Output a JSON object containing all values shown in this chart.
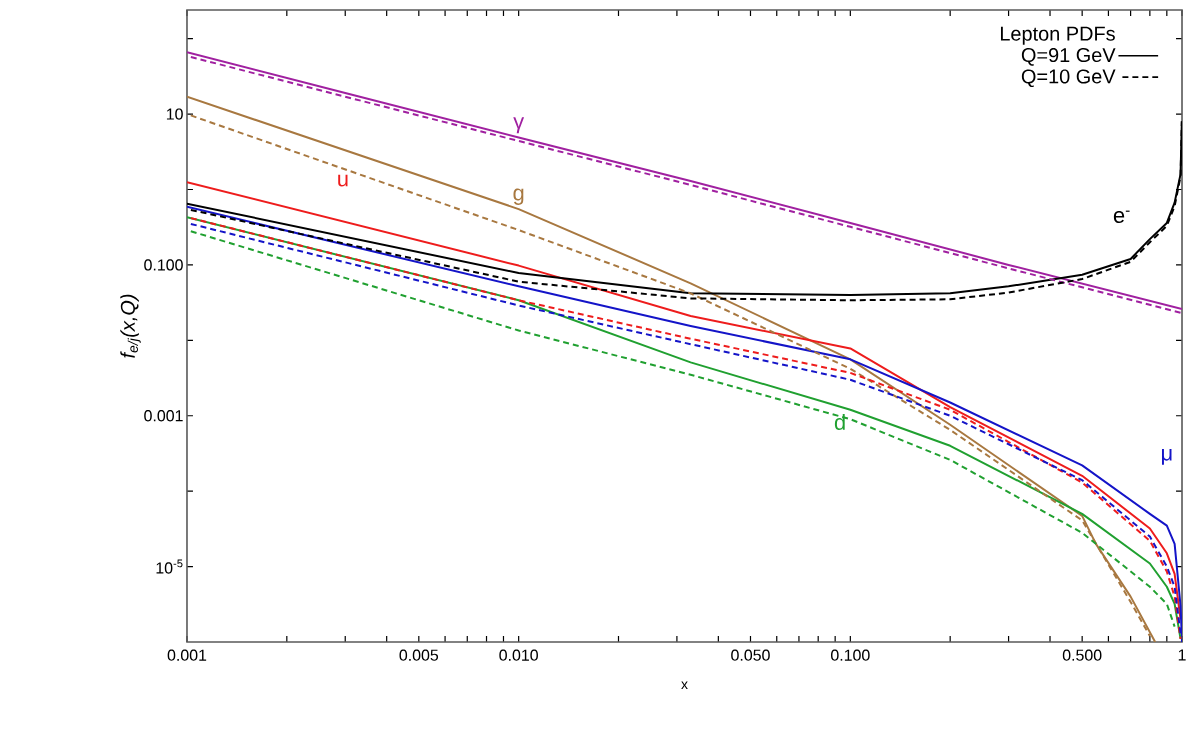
{
  "chart_data": {
    "type": "line",
    "log": "xy",
    "xlabel": "x",
    "ylabel": "f$_{e/j}$(x,Q)",
    "legend": "top right",
    "legend_title": "Lepton PDFs",
    "annotations": [
      "Q=91 GeV",
      "Q=10 GeV"
    ],
    "xlim": [
      0.001,
      1
    ],
    "ylim": [
      1e-06,
      240
    ],
    "xticks": [
      {
        "value": 0.001,
        "label": "0.001"
      },
      {
        "value": 0.002,
        "label": null
      },
      {
        "value": 0.003,
        "label": null
      },
      {
        "value": 0.004,
        "label": null
      },
      {
        "value": 0.005,
        "label": "0.005"
      },
      {
        "value": 0.006,
        "label": null
      },
      {
        "value": 0.007,
        "label": null
      },
      {
        "value": 0.008,
        "label": null
      },
      {
        "value": 0.009,
        "label": null
      },
      {
        "value": 0.01,
        "label": "0.010"
      },
      {
        "value": 0.02,
        "label": null
      },
      {
        "value": 0.03,
        "label": null
      },
      {
        "value": 0.04,
        "label": null
      },
      {
        "value": 0.05,
        "label": "0.050"
      },
      {
        "value": 0.06,
        "label": null
      },
      {
        "value": 0.07,
        "label": null
      },
      {
        "value": 0.08,
        "label": null
      },
      {
        "value": 0.09,
        "label": null
      },
      {
        "value": 0.1,
        "label": "0.100"
      },
      {
        "value": 0.2,
        "label": null
      },
      {
        "value": 0.3,
        "label": null
      },
      {
        "value": 0.4,
        "label": null
      },
      {
        "value": 0.5,
        "label": "0.500"
      },
      {
        "value": 0.6,
        "label": null
      },
      {
        "value": 0.7,
        "label": null
      },
      {
        "value": 0.8,
        "label": null
      },
      {
        "value": 0.9,
        "label": null
      },
      {
        "value": 1,
        "label": "1"
      }
    ],
    "yticks": [
      {
        "value": 100,
        "label": null
      },
      {
        "value": 10,
        "label": "10"
      },
      {
        "value": 1,
        "label": null
      },
      {
        "value": 0.1,
        "label": "0.100"
      },
      {
        "value": 0.01,
        "label": null
      },
      {
        "value": 0.001,
        "label": "0.001"
      },
      {
        "value": 0.0001,
        "label": null
      },
      {
        "value": 1e-05,
        "label": "10$^{-5}$"
      }
    ],
    "series": [
      {
        "name": "γ",
        "color": "#a020a0",
        "line_style": "solid",
        "x": [
          0.001,
          0.003,
          0.01,
          0.033,
          0.1,
          0.3,
          1
        ],
        "values": [
          66,
          19,
          4.9,
          1.3,
          0.36,
          0.1,
          0.026
        ]
      },
      {
        "color": "#a020a0",
        "line_style": "dashed",
        "x": [
          0.001,
          0.003,
          0.01,
          0.033,
          0.1,
          0.3,
          1
        ],
        "values": [
          59,
          17,
          4.4,
          1.15,
          0.32,
          0.09,
          0.023
        ]
      },
      {
        "name": "g",
        "color": "#a87840",
        "line_style": "solid",
        "x": [
          0.001,
          0.01,
          0.033,
          0.1,
          0.2,
          0.5,
          0.55,
          0.7,
          0.83
        ],
        "values": [
          17,
          0.55,
          0.057,
          0.0056,
          0.00076,
          4.7e-05,
          2e-05,
          4e-06,
          1e-06
        ]
      },
      {
        "color": "#a87840",
        "line_style": "dashed",
        "x": [
          0.001,
          0.01,
          0.033,
          0.1,
          0.2,
          0.5,
          0.7,
          0.8
        ],
        "values": [
          10,
          0.29,
          0.042,
          0.0042,
          0.00065,
          4.1e-05,
          3.4e-06,
          1.2e-06
        ]
      },
      {
        "name": "u",
        "color": "#ee1c1c",
        "line_style": "solid",
        "x": [
          0.001,
          0.01,
          0.033,
          0.1,
          0.2,
          0.5,
          0.8,
          0.9,
          0.95,
          0.99
        ],
        "values": [
          1.25,
          0.098,
          0.021,
          0.0078,
          0.0013,
          0.00016,
          3.2e-05,
          1.5e-05,
          8e-06,
          2e-06
        ]
      },
      {
        "color": "#ee1c1c",
        "line_style": "dashed",
        "x": [
          0.001,
          0.01,
          0.033,
          0.1,
          0.2,
          0.5,
          0.8,
          0.9,
          0.95,
          0.99
        ],
        "values": [
          0.43,
          0.034,
          0.0105,
          0.0037,
          0.0012,
          0.00013,
          2.2e-05,
          8.6e-06,
          4e-06,
          1.1e-06
        ]
      },
      {
        "name": "μ",
        "color": "#1414c8",
        "line_style": "solid",
        "x": [
          0.001,
          0.01,
          0.033,
          0.1,
          0.2,
          0.5,
          0.8,
          0.9,
          0.95,
          0.99,
          1
        ],
        "values": [
          0.59,
          0.052,
          0.0155,
          0.0056,
          0.0015,
          0.00022,
          5e-05,
          3.5e-05,
          2e-05,
          3e-06,
          1e-06
        ]
      },
      {
        "color": "#1414c8",
        "line_style": "dashed",
        "x": [
          0.001,
          0.01,
          0.033,
          0.1,
          0.2,
          0.5,
          0.8,
          0.9,
          0.95,
          0.99
        ],
        "values": [
          0.36,
          0.029,
          0.0089,
          0.003,
          0.001,
          0.00014,
          2.5e-05,
          1e-05,
          5.4e-06,
          1.3e-06
        ]
      },
      {
        "name": "d",
        "color": "#20a030",
        "line_style": "solid",
        "x": [
          0.001,
          0.01,
          0.033,
          0.1,
          0.2,
          0.5,
          0.8,
          0.9,
          0.95,
          0.99
        ],
        "values": [
          0.43,
          0.034,
          0.0051,
          0.0012,
          0.0004,
          5e-05,
          1.1e-05,
          5.4e-06,
          3.2e-06,
          1.1e-06
        ]
      },
      {
        "color": "#20a030",
        "line_style": "dashed",
        "x": [
          0.001,
          0.01,
          0.033,
          0.1,
          0.2,
          0.5,
          0.8,
          0.9,
          0.95
        ],
        "values": [
          0.29,
          0.0135,
          0.0035,
          0.0009,
          0.00026,
          2.8e-05,
          5.4e-06,
          3.2e-06,
          1.6e-06
        ]
      },
      {
        "name": "e$^{-}$",
        "color": "#000000",
        "line_style": "solid",
        "x": [
          0.001,
          0.01,
          0.033,
          0.1,
          0.2,
          0.3,
          0.5,
          0.7,
          0.8,
          0.9,
          0.95,
          0.99,
          0.999
        ],
        "values": [
          0.65,
          0.078,
          0.042,
          0.04,
          0.042,
          0.052,
          0.074,
          0.12,
          0.22,
          0.36,
          0.67,
          1.6,
          8
        ]
      },
      {
        "color": "#000000",
        "line_style": "dashed",
        "x": [
          0.001,
          0.01,
          0.033,
          0.1,
          0.2,
          0.3,
          0.5,
          0.7,
          0.8,
          0.9,
          0.95,
          0.99,
          0.999
        ],
        "values": [
          0.55,
          0.06,
          0.036,
          0.034,
          0.035,
          0.043,
          0.065,
          0.11,
          0.2,
          0.33,
          0.6,
          1.5,
          8
        ]
      }
    ]
  }
}
